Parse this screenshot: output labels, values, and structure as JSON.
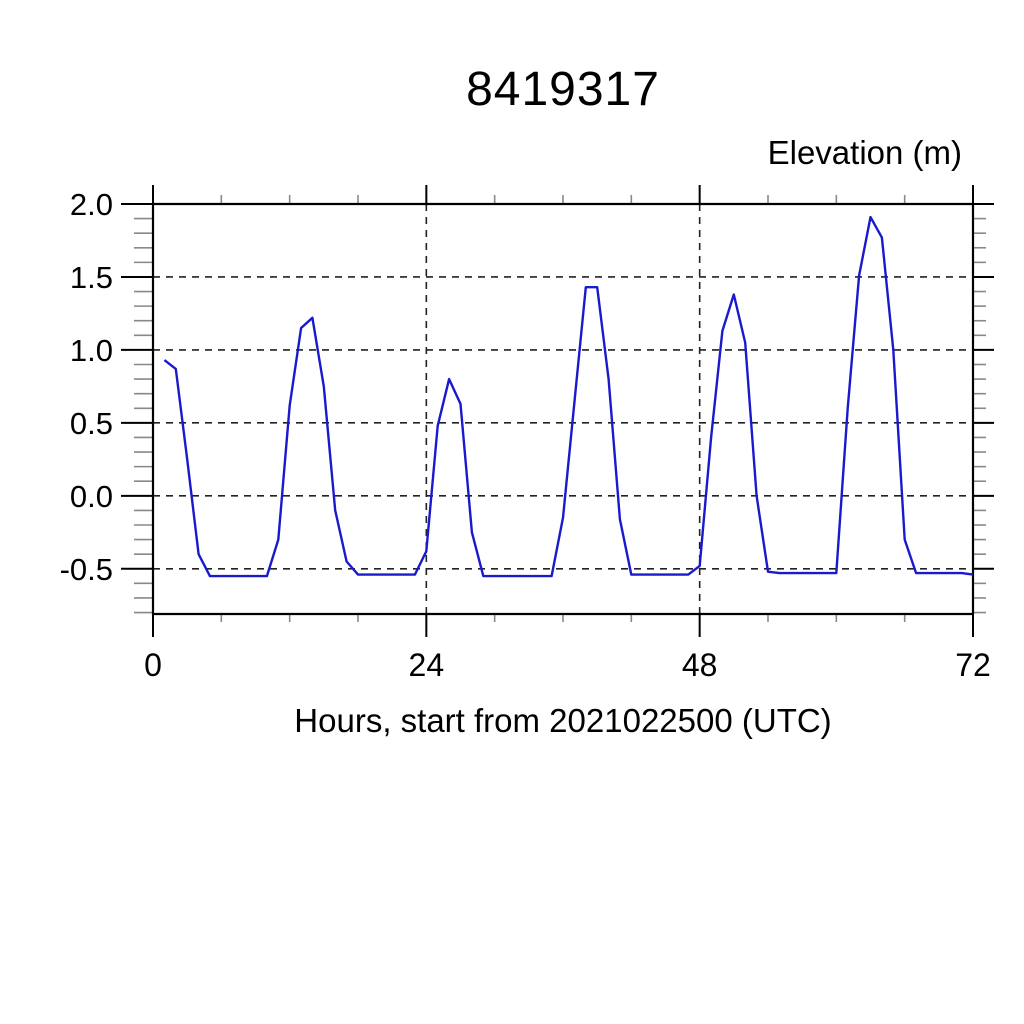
{
  "page": {
    "background": "#ffffff"
  },
  "chart_data": {
    "type": "line",
    "title": "8419317",
    "ylabel": "Elevation (m)",
    "xlabel": "Hours, start from 2021022500 (UTC)",
    "xlim": [
      0,
      72
    ],
    "ylim": [
      -0.81,
      2.0
    ],
    "x_ticks": {
      "values": [
        0,
        24,
        48,
        72
      ],
      "labels": [
        "0",
        "24",
        "48",
        "72"
      ]
    },
    "x_minor_step": 6,
    "y_ticks": {
      "values": [
        2.0,
        1.5,
        1.0,
        0.5,
        0.0,
        -0.5
      ],
      "labels": [
        "2.0",
        "1.5",
        "1.0",
        "0.5",
        "0.0",
        "-0.5"
      ]
    },
    "y_minor_step": 0.1,
    "grid": {
      "horizontal_at": [
        2.0,
        1.5,
        1.0,
        0.5,
        0.0,
        -0.5
      ],
      "vertical_at": [
        24,
        48
      ],
      "style": "dashed"
    },
    "legend": "none",
    "axis_color": "#000000",
    "grid_color": "#222222",
    "minor_tick_color": "#888888",
    "series": [
      {
        "name": "elevation",
        "color": "#1a1acd",
        "x_start": 1,
        "x_step": 1,
        "values": [
          0.93,
          0.87,
          0.25,
          -0.4,
          -0.55,
          -0.55,
          -0.55,
          -0.55,
          -0.55,
          -0.55,
          -0.3,
          0.62,
          1.15,
          1.22,
          0.75,
          -0.1,
          -0.45,
          -0.54,
          -0.54,
          -0.54,
          -0.54,
          -0.54,
          -0.54,
          -0.38,
          0.48,
          0.8,
          0.63,
          -0.25,
          -0.55,
          -0.55,
          -0.55,
          -0.55,
          -0.55,
          -0.55,
          -0.55,
          -0.15,
          0.64,
          1.43,
          1.43,
          0.8,
          -0.16,
          -0.54,
          -0.54,
          -0.54,
          -0.54,
          -0.54,
          -0.54,
          -0.48,
          0.4,
          1.13,
          1.38,
          1.05,
          0.0,
          -0.52,
          -0.53,
          -0.53,
          -0.53,
          -0.53,
          -0.53,
          -0.53,
          0.6,
          1.51,
          1.91,
          1.77,
          1.0,
          -0.3,
          -0.53,
          -0.53,
          -0.53,
          -0.53,
          -0.53,
          -0.54
        ]
      }
    ]
  }
}
